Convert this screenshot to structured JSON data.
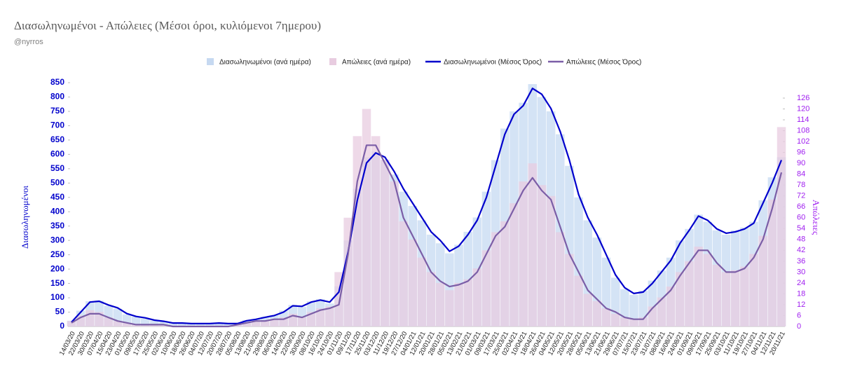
{
  "chart_data": {
    "type": "combo",
    "title": "Διασωληνωμένοι - Απώλειες (Μέσοι όροι, κυλιόμενοι 7ημερου)",
    "subtitle": "@nyrros",
    "y_label": "Διασωληνωμένοι",
    "y2_label": "Απώλειες",
    "categories": [
      "14/03/20",
      "22/03/20",
      "30/03/20",
      "07/04/20",
      "15/04/20",
      "23/04/20",
      "01/05/20",
      "09/05/20",
      "17/05/20",
      "25/05/20",
      "02/06/20",
      "10/06/20",
      "18/06/20",
      "26/06/20",
      "04/07/20",
      "12/07/20",
      "20/07/20",
      "28/07/20",
      "05/08/20",
      "13/08/20",
      "21/08/20",
      "29/08/20",
      "06/09/20",
      "14/09/20",
      "22/09/20",
      "30/09/20",
      "08/10/20",
      "16/10/20",
      "24/10/20",
      "01/11/20",
      "09/11/20",
      "17/11/20",
      "25/11/20",
      "03/12/20",
      "11/12/20",
      "19/12/20",
      "27/12/20",
      "04/01/21",
      "12/01/21",
      "20/01/21",
      "28/01/21",
      "05/02/21",
      "13/02/21",
      "21/02/21",
      "01/03/21",
      "09/03/21",
      "17/03/21",
      "25/03/21",
      "02/04/21",
      "10/04/21",
      "18/04/21",
      "26/04/21",
      "04/05/21",
      "12/05/21",
      "20/05/21",
      "28/05/21",
      "05/06/21",
      "13/06/21",
      "21/06/21",
      "29/06/21",
      "07/07/21",
      "15/07/21",
      "23/07/21",
      "31/07/21",
      "08/08/21",
      "16/08/21",
      "24/08/21",
      "01/09/21",
      "09/09/21",
      "17/09/21",
      "25/09/21",
      "03/10/21",
      "11/10/21",
      "19/10/21",
      "27/10/21",
      "04/11/21",
      "12/11/21",
      "20/11/21"
    ],
    "series": [
      {
        "name": "Διασωληνωμένοι (ανά ημέρα)",
        "type": "bar",
        "color": "#c6d9f1",
        "values": [
          20,
          55,
          88,
          90,
          72,
          62,
          42,
          34,
          28,
          20,
          17,
          12,
          11,
          10,
          10,
          9,
          12,
          9,
          10,
          22,
          26,
          34,
          40,
          55,
          75,
          68,
          88,
          95,
          80,
          140,
          300,
          480,
          590,
          610,
          580,
          530,
          470,
          420,
          370,
          320,
          290,
          255,
          285,
          330,
          380,
          470,
          580,
          690,
          750,
          780,
          845,
          800,
          750,
          670,
          560,
          450,
          370,
          310,
          240,
          170,
          130,
          110,
          125,
          160,
          195,
          240,
          300,
          340,
          390,
          365,
          335,
          320,
          335,
          345,
          365,
          440,
          520,
          590
        ]
      },
      {
        "name": "Απώλειες (ανά ημέρα)",
        "type": "bar",
        "axis": "y2",
        "color": "#e8cce0",
        "values": [
          3,
          6,
          9,
          8,
          5,
          3,
          2,
          1,
          1,
          1,
          1,
          0,
          0,
          0,
          0,
          0,
          0,
          0,
          1,
          2,
          3,
          3,
          4,
          5,
          7,
          5,
          8,
          10,
          11,
          30,
          60,
          105,
          120,
          105,
          92,
          80,
          58,
          48,
          38,
          30,
          24,
          20,
          24,
          26,
          32,
          42,
          52,
          58,
          68,
          80,
          90,
          78,
          72,
          52,
          40,
          28,
          18,
          14,
          10,
          7,
          5,
          4,
          5,
          11,
          16,
          22,
          30,
          36,
          44,
          40,
          34,
          30,
          31,
          33,
          40,
          50,
          70,
          110
        ]
      },
      {
        "name": "Διασωληνωμένοι (Μέσος Όρος)",
        "type": "line",
        "color": "#0000cc",
        "values": [
          15,
          50,
          85,
          88,
          75,
          65,
          45,
          35,
          30,
          22,
          18,
          12,
          12,
          10,
          10,
          10,
          12,
          10,
          10,
          20,
          25,
          32,
          38,
          50,
          72,
          70,
          85,
          92,
          85,
          120,
          260,
          440,
          570,
          605,
          590,
          540,
          480,
          430,
          380,
          330,
          300,
          262,
          280,
          320,
          370,
          450,
          560,
          670,
          740,
          770,
          830,
          810,
          760,
          680,
          580,
          460,
          380,
          320,
          250,
          180,
          135,
          115,
          120,
          150,
          190,
          230,
          290,
          335,
          385,
          370,
          340,
          325,
          330,
          340,
          360,
          430,
          500,
          580
        ]
      },
      {
        "name": "Απώλειες (Μέσος Όρος)",
        "type": "line",
        "axis": "y2",
        "color": "#7b5ea7",
        "values": [
          2,
          5,
          7,
          7,
          5,
          3,
          2,
          1,
          1,
          1,
          1,
          0,
          0,
          0,
          0,
          0,
          0,
          0,
          1,
          2,
          3,
          3,
          4,
          4,
          6,
          5,
          7,
          9,
          10,
          12,
          40,
          80,
          100,
          100,
          90,
          80,
          60,
          50,
          40,
          30,
          25,
          22,
          23,
          25,
          30,
          40,
          50,
          55,
          65,
          75,
          82,
          75,
          70,
          55,
          40,
          30,
          20,
          15,
          10,
          8,
          5,
          4,
          4,
          10,
          15,
          20,
          28,
          35,
          42,
          42,
          35,
          30,
          30,
          32,
          38,
          48,
          65,
          85
        ]
      }
    ],
    "ylim": [
      0,
      850
    ],
    "yticks": [
      0,
      50,
      100,
      150,
      200,
      250,
      300,
      350,
      400,
      450,
      500,
      550,
      600,
      650,
      700,
      750,
      800,
      850
    ],
    "y2lim": [
      0,
      134.5
    ],
    "y2ticks": [
      0,
      6,
      12,
      18,
      24,
      30,
      36,
      42,
      48,
      54,
      60,
      66,
      72,
      78,
      84,
      90,
      96,
      102,
      108,
      114,
      120,
      126
    ],
    "legend": "top"
  }
}
